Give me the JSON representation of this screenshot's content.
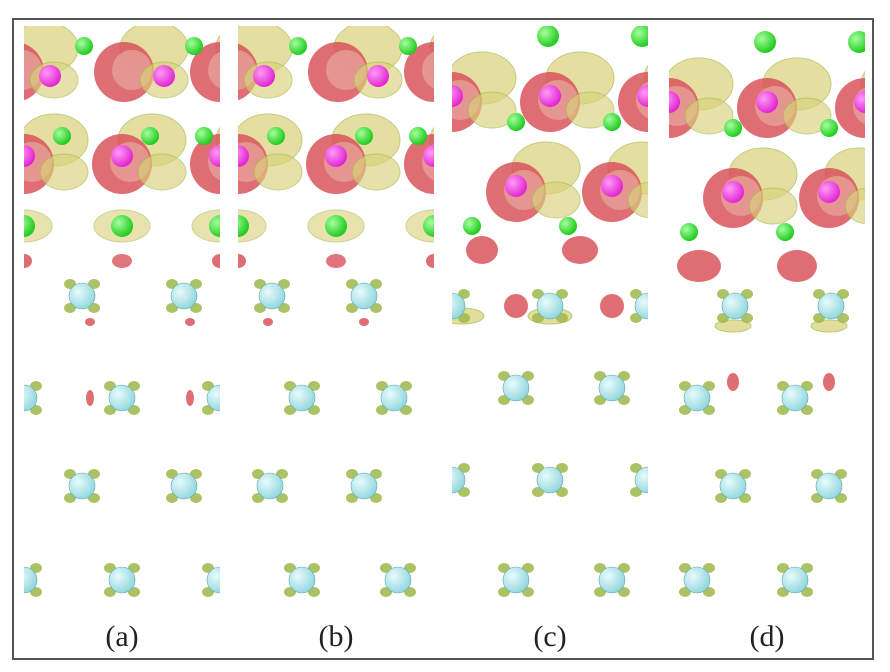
{
  "figure": {
    "panels": [
      {
        "id": "a",
        "label": "(a)"
      },
      {
        "id": "b",
        "label": "(b)"
      },
      {
        "id": "c",
        "label": "(c)"
      },
      {
        "id": "d",
        "label": "(d)"
      }
    ],
    "colors": {
      "accumulation": "#d9d27a",
      "accumulation_dark": "#9db84a",
      "depletion": "#d9535c",
      "depletion_light": "#e8a8a0",
      "anion_atom": "#18c818",
      "cation_atom": "#e020d0",
      "substrate_atom": "#8fd6dc",
      "frame": "#555555"
    }
  }
}
